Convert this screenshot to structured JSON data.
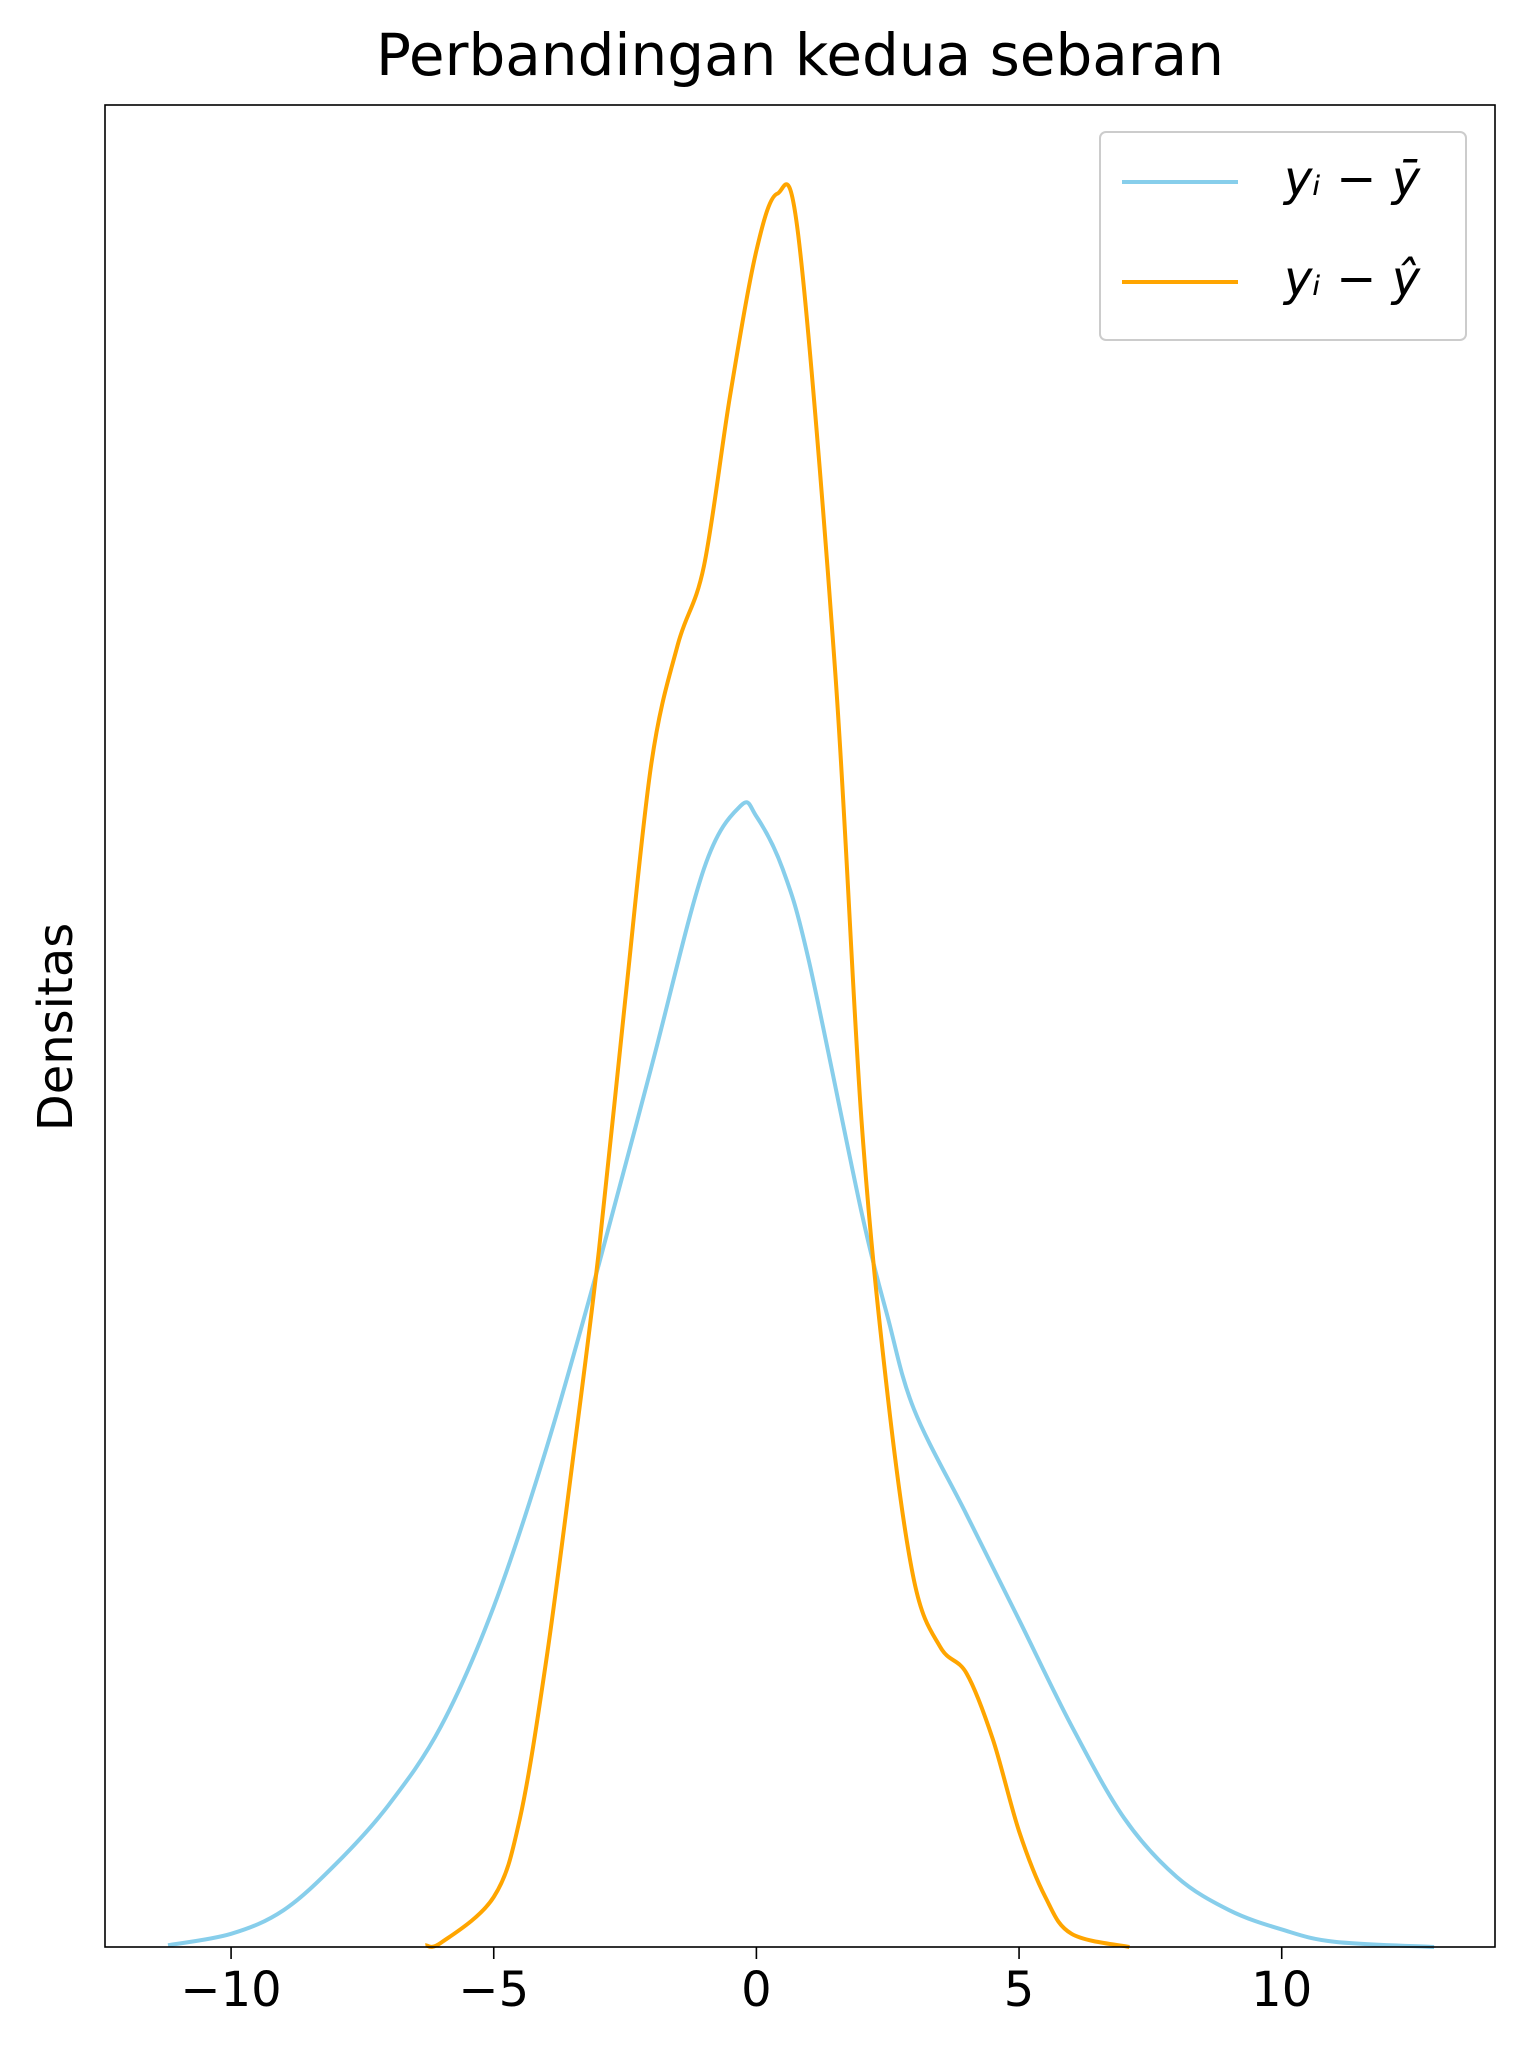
{
  "chart_data": {
    "type": "line",
    "title": "Perbandingan kedua sebaran",
    "y_label": "Densitas",
    "xlim": [
      -12.4,
      14.06
    ],
    "ylim": [
      0,
      0.21
    ],
    "xticks": [
      {
        "value": -10,
        "label": "−10"
      },
      {
        "value": -5,
        "label": "−5"
      },
      0,
      5,
      10
    ],
    "legend": "upper right",
    "series": [
      {
        "name": "yᵢ − ȳ",
        "color": "#87ceeb",
        "x": [
          -11.2,
          -10,
          -9,
          -8,
          -7,
          -6,
          -5,
          -4,
          -3,
          -2,
          -1,
          -0.3,
          0,
          0.5,
          1,
          2,
          2.5,
          3,
          4,
          5,
          6,
          7,
          8,
          9,
          10,
          11,
          12.9
        ],
        "values": [
          0.0002,
          0.0015,
          0.0042,
          0.0095,
          0.0162,
          0.0252,
          0.0388,
          0.0568,
          0.0778,
          0.1003,
          0.1229,
          0.1301,
          0.1289,
          0.1229,
          0.1124,
          0.0838,
          0.0718,
          0.0613,
          0.0493,
          0.0373,
          0.0252,
          0.0147,
          0.008,
          0.0042,
          0.002,
          0.0006,
          0
        ]
      },
      {
        "name": "yᵢ − ŷ",
        "color": "#ffa500",
        "x": [
          -6.3,
          -6,
          -5,
          -4.5,
          -4,
          -3.5,
          -3,
          -2.5,
          -2,
          -1.5,
          -1,
          -0.5,
          0,
          0.4,
          0.8,
          1.5,
          2,
          2.5,
          3,
          3.5,
          4,
          4.5,
          5,
          5.5,
          6,
          7.1
        ],
        "values": [
          0.0002,
          0.0005,
          0.0057,
          0.0147,
          0.0327,
          0.0553,
          0.0793,
          0.1078,
          0.1349,
          0.1484,
          0.1574,
          0.1769,
          0.1934,
          0.1999,
          0.195,
          0.1454,
          0.0943,
          0.0628,
          0.0418,
          0.0342,
          0.0312,
          0.0237,
          0.0132,
          0.0057,
          0.0015,
          0
        ]
      }
    ]
  }
}
